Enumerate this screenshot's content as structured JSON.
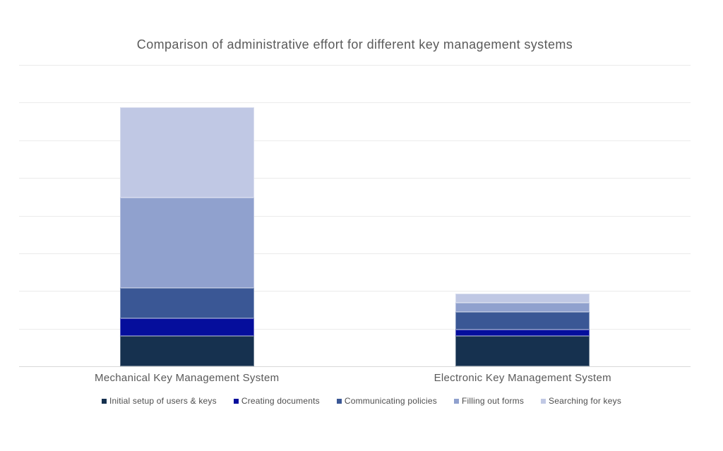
{
  "chart_data": {
    "type": "bar",
    "stacked": true,
    "title": "Comparison of administrative effort for different key management systems",
    "categories": [
      "Mechanical Key Management System",
      "Electronic Key Management System"
    ],
    "series": [
      {
        "name": "Initial setup of users & keys",
        "color": "#16314F",
        "values": [
          0.8,
          0.8
        ]
      },
      {
        "name": "Creating documents",
        "color": "#050E9C",
        "values": [
          0.48,
          0.17
        ]
      },
      {
        "name": "Communicating policies",
        "color": "#3A5795",
        "values": [
          0.8,
          0.48
        ]
      },
      {
        "name": "Filling out forms",
        "color": "#90A1CE",
        "values": [
          2.4,
          0.23
        ]
      },
      {
        "name": "Searching for keys",
        "color": "#C0C8E4",
        "values": [
          2.4,
          0.25
        ]
      }
    ],
    "totals": [
      6.88,
      1.93
    ],
    "xlabel": "",
    "ylabel": "",
    "ylim": [
      0,
      8
    ],
    "ytick_labels_visible": false,
    "gridline_count": 9,
    "grid": true,
    "legend_position": "bottom",
    "colors": {
      "background": "#FFFFFF",
      "grid": "#EBEBEB",
      "baseline": "#D8D8D8",
      "title_text": "#5A5A5A",
      "category_text": "#595959",
      "legend_text": "#4D4D4D"
    }
  }
}
